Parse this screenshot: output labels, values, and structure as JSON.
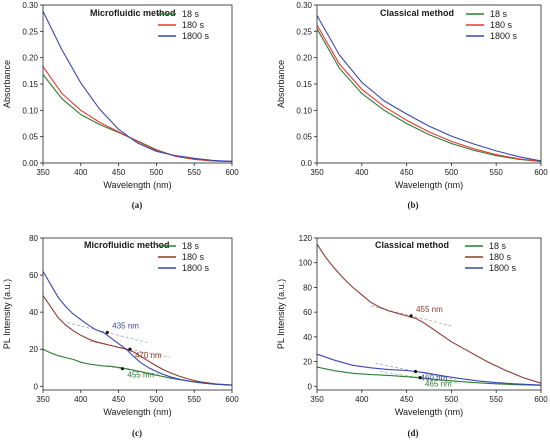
{
  "colors": {
    "s18": "#2e7d32",
    "s180": "#e53935",
    "s1800": "#3949ab",
    "pl18": "#2e7d32",
    "pl180": "#8d3b2f",
    "pl1800": "#3949ab",
    "axis": "#222222"
  },
  "chart_data": [
    {
      "panel": "a",
      "type": "line",
      "title": "Microfluidic method",
      "caption": "(a)",
      "xlabel": "Wavelength (nm)",
      "ylabel": "Absorbance",
      "xlim": [
        350,
        600
      ],
      "ylim": [
        0.0,
        0.3
      ],
      "xticks": [
        350,
        400,
        450,
        500,
        550,
        600
      ],
      "yticks": [
        0.0,
        0.05,
        0.1,
        0.15,
        0.2,
        0.25,
        0.3
      ],
      "yticklabels": [
        "0.00",
        "0.05",
        "0.10",
        "0.15",
        "0.20",
        "0.25",
        "0.30"
      ],
      "legend_position": "top-right",
      "series": [
        {
          "name": "18 s",
          "color": "#2e7d32",
          "x": [
            350,
            375,
            400,
            425,
            450,
            475,
            500,
            525,
            550,
            575,
            600
          ],
          "y": [
            0.168,
            0.122,
            0.092,
            0.073,
            0.058,
            0.042,
            0.025,
            0.013,
            0.007,
            0.004,
            0.003
          ]
        },
        {
          "name": "180 s",
          "color": "#e53935",
          "x": [
            350,
            375,
            400,
            425,
            450,
            475,
            500,
            525,
            550,
            575,
            600
          ],
          "y": [
            0.183,
            0.132,
            0.1,
            0.077,
            0.059,
            0.041,
            0.024,
            0.013,
            0.007,
            0.004,
            0.003
          ]
        },
        {
          "name": "1800 s",
          "color": "#3949ab",
          "x": [
            350,
            375,
            400,
            425,
            450,
            475,
            500,
            525,
            550,
            575,
            600
          ],
          "y": [
            0.288,
            0.215,
            0.152,
            0.102,
            0.064,
            0.038,
            0.022,
            0.014,
            0.009,
            0.005,
            0.003
          ]
        }
      ],
      "annotations": []
    },
    {
      "panel": "b",
      "type": "line",
      "title": "Classical method",
      "caption": "(b)",
      "xlabel": "Wavelength (nm)",
      "ylabel": "Absorbance",
      "xlim": [
        350,
        600
      ],
      "ylim": [
        0.0,
        0.3
      ],
      "xticks": [
        350,
        400,
        450,
        500,
        550,
        600
      ],
      "yticks": [
        0.0,
        0.05,
        0.1,
        0.15,
        0.2,
        0.25,
        0.3
      ],
      "yticklabels": [
        "0.0",
        "0.05",
        "0.10",
        "0.15",
        "0.20",
        "0.25",
        "0.30"
      ],
      "legend_position": "top-right",
      "series": [
        {
          "name": "18 s",
          "color": "#2e7d32",
          "x": [
            350,
            375,
            400,
            425,
            450,
            475,
            500,
            525,
            550,
            575,
            600
          ],
          "y": [
            0.255,
            0.18,
            0.132,
            0.1,
            0.075,
            0.054,
            0.037,
            0.024,
            0.014,
            0.007,
            0.003
          ]
        },
        {
          "name": "180 s",
          "color": "#e53935",
          "x": [
            350,
            375,
            400,
            425,
            450,
            475,
            500,
            525,
            550,
            575,
            600
          ],
          "y": [
            0.262,
            0.188,
            0.14,
            0.107,
            0.081,
            0.059,
            0.041,
            0.027,
            0.016,
            0.008,
            0.003
          ]
        },
        {
          "name": "1800 s",
          "color": "#3949ab",
          "x": [
            350,
            375,
            400,
            425,
            450,
            475,
            500,
            525,
            550,
            575,
            600
          ],
          "y": [
            0.28,
            0.205,
            0.153,
            0.118,
            0.093,
            0.07,
            0.051,
            0.036,
            0.023,
            0.012,
            0.004
          ]
        }
      ],
      "annotations": []
    },
    {
      "panel": "c",
      "type": "line",
      "title": "Microfluidic method",
      "caption": "(c)",
      "xlabel": "Wavelength (nm)",
      "ylabel": "PL Intensity (a.u.)",
      "xlim": [
        350,
        600
      ],
      "ylim": [
        -2,
        80
      ],
      "xticks": [
        350,
        400,
        450,
        500,
        550,
        600
      ],
      "yticks": [
        0,
        20,
        40,
        60,
        80
      ],
      "yticklabels": [
        "0",
        "20",
        "40",
        "60",
        "80"
      ],
      "legend_position": "top-right",
      "series": [
        {
          "name": "18 s",
          "color": "#2e7d32",
          "x": [
            350,
            360,
            370,
            380,
            390,
            400,
            410,
            420,
            430,
            440,
            450,
            460,
            470,
            480,
            490,
            500,
            510,
            520,
            530,
            540,
            550,
            560,
            570,
            580,
            590,
            600
          ],
          "y": [
            20,
            18,
            16.5,
            15.5,
            14.5,
            13,
            12,
            11.5,
            11,
            10.8,
            10.2,
            9.5,
            8.7,
            7.8,
            6.8,
            6,
            5.2,
            4.3,
            3.6,
            3,
            2.4,
            1.9,
            1.4,
            1.1,
            0.8,
            0.6
          ]
        },
        {
          "name": "180 s",
          "color": "#8d3b2f",
          "x": [
            350,
            360,
            370,
            380,
            390,
            400,
            410,
            420,
            430,
            440,
            450,
            460,
            470,
            480,
            490,
            500,
            510,
            520,
            530,
            540,
            550,
            560,
            570,
            580,
            590,
            600
          ],
          "y": [
            49,
            43,
            37,
            33,
            30,
            27.5,
            25.5,
            24,
            23,
            22,
            21,
            20,
            18.5,
            16,
            13.5,
            11,
            8.8,
            7,
            5.5,
            4.2,
            3.1,
            2.3,
            1.7,
            1.2,
            0.9,
            0.7
          ]
        },
        {
          "name": "1800 s",
          "color": "#3949ab",
          "x": [
            350,
            360,
            370,
            380,
            390,
            400,
            410,
            420,
            430,
            440,
            450,
            460,
            470,
            480,
            490,
            500,
            510,
            520,
            530,
            540,
            550,
            560,
            570,
            580,
            590,
            600
          ],
          "y": [
            62,
            55,
            48,
            43,
            39,
            36,
            33,
            30.5,
            29,
            26,
            23,
            20,
            16,
            12.5,
            10,
            8,
            6.3,
            4.9,
            3.8,
            3,
            2.3,
            1.8,
            1.4,
            1.1,
            0.9,
            0.7
          ]
        }
      ],
      "annotations": [
        {
          "text": "435 nm",
          "x": 435,
          "y": 29,
          "color": "#3949ab"
        },
        {
          "text": "470 nm",
          "x": 465,
          "y": 20,
          "color": "#8d3b2f"
        },
        {
          "text": "455 nm",
          "x": 455,
          "y": 9.5,
          "color": "#2e7d32"
        }
      ]
    },
    {
      "panel": "d",
      "type": "line",
      "title": "Classical method",
      "caption": "(d)",
      "xlabel": "Wavelength (nm)",
      "ylabel": "PL Intensity (a.u.)",
      "xlim": [
        350,
        600
      ],
      "ylim": [
        -3,
        120
      ],
      "xticks": [
        350,
        400,
        450,
        500,
        550,
        600
      ],
      "yticks": [
        0,
        20,
        40,
        60,
        80,
        100,
        120
      ],
      "yticklabels": [
        "0",
        "20",
        "40",
        "60",
        "80",
        "100",
        "120"
      ],
      "legend_position": "top-right",
      "series": [
        {
          "name": "18 s",
          "color": "#2e7d32",
          "x": [
            350,
            370,
            390,
            410,
            430,
            450,
            470,
            490,
            510,
            530,
            550,
            570,
            600
          ],
          "y": [
            15.5,
            12.5,
            10.5,
            9.5,
            8.8,
            7.8,
            6.5,
            5,
            3.8,
            2.8,
            2,
            1.4,
            0.8
          ]
        },
        {
          "name": "180 s",
          "color": "#8d3b2f",
          "x": [
            350,
            360,
            370,
            380,
            390,
            400,
            410,
            420,
            430,
            440,
            450,
            460,
            470,
            480,
            490,
            500,
            520,
            540,
            560,
            580,
            600
          ],
          "y": [
            115,
            104,
            95,
            87,
            80,
            74,
            68,
            64,
            61,
            59,
            57,
            55,
            51,
            46,
            41,
            36,
            28,
            20,
            13,
            7,
            2.5
          ]
        },
        {
          "name": "1800 s",
          "color": "#3949ab",
          "x": [
            350,
            370,
            390,
            410,
            430,
            450,
            460,
            470,
            490,
            510,
            530,
            550,
            570,
            600
          ],
          "y": [
            26,
            21,
            17,
            15,
            13.5,
            12.8,
            12,
            11,
            8.5,
            6.2,
            4.4,
            3,
            2,
            1
          ]
        }
      ],
      "annotations": [
        {
          "text": "455 nm",
          "x": 455,
          "y": 57,
          "color": "#8d3b2f"
        },
        {
          "text": "460 nm",
          "x": 460,
          "y": 12,
          "color": "#3949ab"
        },
        {
          "text": "465 nm",
          "x": 465,
          "y": 7,
          "color": "#2e7d32"
        }
      ]
    }
  ]
}
